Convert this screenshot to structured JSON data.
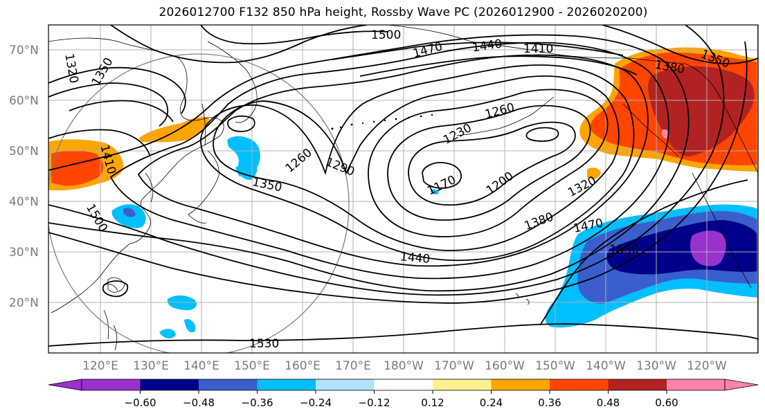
{
  "title": "2026012700 F132 850 hPa height, Rossby Wave PC (2026012900 - 2026020200)",
  "lat_labels": [
    "70°N",
    "60°N",
    "50°N",
    "40°N",
    "30°N",
    "20°N"
  ],
  "lon_labels": [
    "120°E",
    "130°E",
    "140°E",
    "150°E",
    "160°E",
    "170°E",
    "180°W",
    "170°W",
    "160°W",
    "150°W",
    "140°W",
    "130°W",
    "120°W"
  ],
  "contour_labels": [
    "1320",
    "1350",
    "1500",
    "1470",
    "1440",
    "1410",
    "1380",
    "1350",
    "1410",
    "1260",
    "1230",
    "1260",
    "1290",
    "1350",
    "1500",
    "1170",
    "1200",
    "1320",
    "1380",
    "1470",
    "1530",
    "1440",
    "1530"
  ],
  "colorbar": {
    "ticks": [
      "−0.60",
      "−0.48",
      "−0.36",
      "−0.24",
      "−0.12",
      "0.12",
      "0.24",
      "0.36",
      "0.48",
      "0.60"
    ],
    "colors": [
      "#9932cc",
      "#00008b",
      "#3a5fcd",
      "#00bfff",
      "#b0e2ff",
      "#ffffff",
      "#fff08f",
      "#ffa500",
      "#ff4500",
      "#b22222",
      "#ff83aa"
    ]
  },
  "anomaly_colors": {
    "purple": "#9932cc",
    "navy": "#00008b",
    "royal_blue": "#3a5fcd",
    "sky_blue": "#00bfff",
    "light_blue": "#b0e2ff",
    "yellow": "#fff08f",
    "orange": "#ffa500",
    "orange_red": "#ff4500",
    "dark_red": "#b22222",
    "pink": "#ff83aa"
  }
}
